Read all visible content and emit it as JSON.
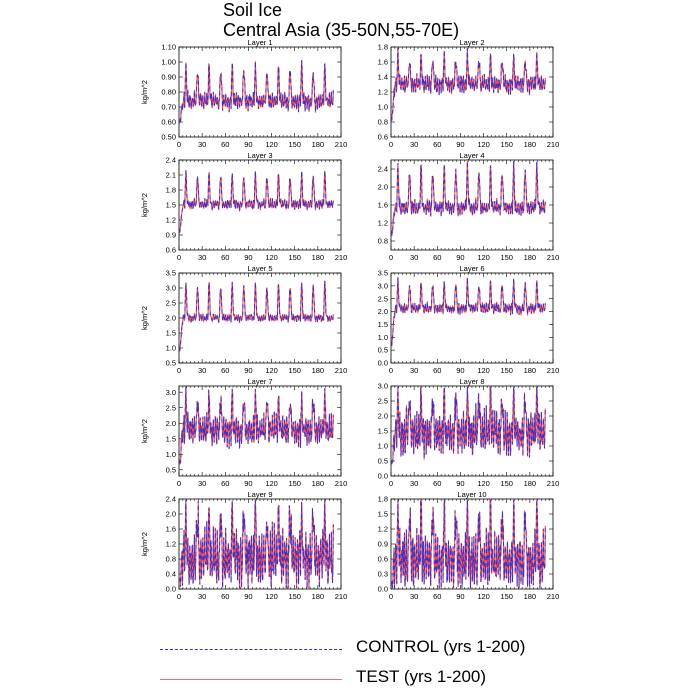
{
  "title": "Soil Ice",
  "subtitle": "Central Asia (35-50N,55-70E)",
  "legend": [
    {
      "label": "CONTROL (yrs 1-200)",
      "color": "#3333cc",
      "style": "dashed"
    },
    {
      "label": "TEST (yrs 1-200)",
      "color": "#ff3333",
      "style": "solid"
    }
  ],
  "chart_data": [
    {
      "type": "line",
      "title": "Layer 1",
      "ylabel": "kg/m^2",
      "xlim": [
        0,
        210
      ],
      "ylim": [
        0.5,
        1.1
      ],
      "xticks": [
        0,
        30,
        60,
        90,
        120,
        150,
        180,
        210
      ],
      "yticks": [
        "0.50",
        "0.60",
        "0.70",
        "0.80",
        "0.90",
        "1.00",
        "1.10"
      ],
      "x_range": [
        1,
        200
      ],
      "base": 0.76,
      "amp_high": 0.2,
      "amp_low": 0.07,
      "start": 0.55,
      "period": 15,
      "series": [
        {
          "name": "CONTROL (yrs 1-200)"
        },
        {
          "name": "TEST (yrs 1-200)"
        }
      ]
    },
    {
      "type": "line",
      "title": "Layer 2",
      "ylabel": "",
      "xlim": [
        0,
        210
      ],
      "ylim": [
        0.6,
        1.8
      ],
      "xticks": [
        0,
        30,
        60,
        90,
        120,
        150,
        180,
        210
      ],
      "yticks": [
        "0.6",
        "0.8",
        "1.0",
        "1.2",
        "1.4",
        "1.6",
        "1.8"
      ],
      "x_range": [
        1,
        200
      ],
      "base": 1.35,
      "amp_high": 0.3,
      "amp_low": 0.15,
      "start": 0.7,
      "period": 15,
      "series": [
        {
          "name": "CONTROL (yrs 1-200)"
        },
        {
          "name": "TEST (yrs 1-200)"
        }
      ]
    },
    {
      "type": "line",
      "title": "Layer 3",
      "ylabel": "kg/m^2",
      "xlim": [
        0,
        210
      ],
      "ylim": [
        0.6,
        2.4
      ],
      "xticks": [
        0,
        30,
        60,
        90,
        120,
        150,
        180,
        210
      ],
      "yticks": [
        "0.6",
        "0.9",
        "1.2",
        "1.5",
        "1.8",
        "2.1",
        "2.4"
      ],
      "x_range": [
        1,
        200
      ],
      "base": 1.55,
      "amp_high": 0.55,
      "amp_low": 0.12,
      "start": 0.8,
      "period": 15,
      "series": [
        {
          "name": "CONTROL (yrs 1-200)"
        },
        {
          "name": "TEST (yrs 1-200)"
        }
      ]
    },
    {
      "type": "line",
      "title": "Layer 4",
      "ylabel": "",
      "xlim": [
        0,
        210
      ],
      "ylim": [
        0.6,
        2.6
      ],
      "xticks": [
        0,
        30,
        60,
        90,
        120,
        150,
        180,
        210
      ],
      "yticks": [
        "0.8",
        "1.2",
        "1.6",
        "2.0",
        "2.4"
      ],
      "x_range": [
        1,
        200
      ],
      "base": 1.6,
      "amp_high": 0.8,
      "amp_low": 0.2,
      "start": 0.75,
      "period": 15,
      "series": [
        {
          "name": "CONTROL (yrs 1-200)"
        },
        {
          "name": "TEST (yrs 1-200)"
        }
      ]
    },
    {
      "type": "line",
      "title": "Layer 5",
      "ylabel": "kg/m^2",
      "xlim": [
        0,
        210
      ],
      "ylim": [
        0.5,
        3.5
      ],
      "xticks": [
        0,
        30,
        60,
        90,
        120,
        150,
        180,
        210
      ],
      "yticks": [
        "0.5",
        "1.0",
        "1.5",
        "2.0",
        "2.5",
        "3.0",
        "3.5"
      ],
      "x_range": [
        1,
        200
      ],
      "base": 2.05,
      "amp_high": 1.05,
      "amp_low": 0.15,
      "start": 0.6,
      "period": 15,
      "series": [
        {
          "name": "CONTROL (yrs 1-200)"
        },
        {
          "name": "TEST (yrs 1-200)"
        }
      ]
    },
    {
      "type": "line",
      "title": "Layer 6",
      "ylabel": "",
      "xlim": [
        0,
        210
      ],
      "ylim": [
        0.0,
        3.5
      ],
      "xticks": [
        0,
        30,
        60,
        90,
        120,
        150,
        180,
        210
      ],
      "yticks": [
        "0.0",
        "0.5",
        "1.0",
        "1.5",
        "2.0",
        "2.5",
        "3.0",
        "3.5"
      ],
      "x_range": [
        1,
        200
      ],
      "base": 2.2,
      "amp_high": 0.9,
      "amp_low": 0.25,
      "start": 0.3,
      "period": 15,
      "series": [
        {
          "name": "CONTROL (yrs 1-200)"
        },
        {
          "name": "TEST (yrs 1-200)"
        }
      ]
    },
    {
      "type": "line",
      "title": "Layer 7",
      "ylabel": "kg/m^2",
      "xlim": [
        0,
        210
      ],
      "ylim": [
        0.3,
        3.2
      ],
      "xticks": [
        0,
        30,
        60,
        90,
        120,
        150,
        180,
        210
      ],
      "yticks": [
        "0.5",
        "1.0",
        "1.5",
        "2.0",
        "2.5",
        "3.0"
      ],
      "x_range": [
        1,
        200
      ],
      "base": 1.95,
      "amp_high": 0.85,
      "amp_low": 0.6,
      "start": 0.4,
      "period": 15,
      "series": [
        {
          "name": "CONTROL (yrs 1-200)"
        },
        {
          "name": "TEST (yrs 1-200)"
        }
      ]
    },
    {
      "type": "line",
      "title": "Layer 8",
      "ylabel": "",
      "xlim": [
        0,
        210
      ],
      "ylim": [
        0.0,
        3.0
      ],
      "xticks": [
        0,
        30,
        60,
        90,
        120,
        150,
        180,
        210
      ],
      "yticks": [
        "0.0",
        "0.5",
        "1.0",
        "1.5",
        "2.0",
        "2.5",
        "3.0"
      ],
      "x_range": [
        1,
        200
      ],
      "base": 1.7,
      "amp_high": 1.0,
      "amp_low": 0.9,
      "start": 0.1,
      "period": 15,
      "series": [
        {
          "name": "CONTROL (yrs 1-200)"
        },
        {
          "name": "TEST (yrs 1-200)"
        }
      ]
    },
    {
      "type": "line",
      "title": "Layer 9",
      "ylabel": "kg/m^2",
      "xlim": [
        0,
        210
      ],
      "ylim": [
        0.0,
        2.4
      ],
      "xticks": [
        0,
        30,
        60,
        90,
        120,
        150,
        180,
        210
      ],
      "yticks": [
        "0.0",
        "0.4",
        "0.8",
        "1.2",
        "1.6",
        "2.0",
        "2.4"
      ],
      "x_range": [
        1,
        200
      ],
      "base": 1.1,
      "amp_high": 0.95,
      "amp_low": 0.95,
      "start": 0.05,
      "period": 15,
      "series": [
        {
          "name": "CONTROL (yrs 1-200)"
        },
        {
          "name": "TEST (yrs 1-200)"
        }
      ]
    },
    {
      "type": "line",
      "title": "Layer 10",
      "ylabel": "",
      "xlim": [
        0,
        210
      ],
      "ylim": [
        0.0,
        1.8
      ],
      "xticks": [
        0,
        30,
        60,
        90,
        120,
        150,
        180,
        210
      ],
      "yticks": [
        "0.0",
        "0.3",
        "0.6",
        "0.9",
        "1.2",
        "1.5",
        "1.8"
      ],
      "x_range": [
        1,
        200
      ],
      "base": 0.75,
      "amp_high": 0.8,
      "amp_low": 0.7,
      "start": 0.0,
      "period": 15,
      "series": [
        {
          "name": "CONTROL (yrs 1-200)"
        },
        {
          "name": "TEST (yrs 1-200)"
        }
      ]
    }
  ]
}
